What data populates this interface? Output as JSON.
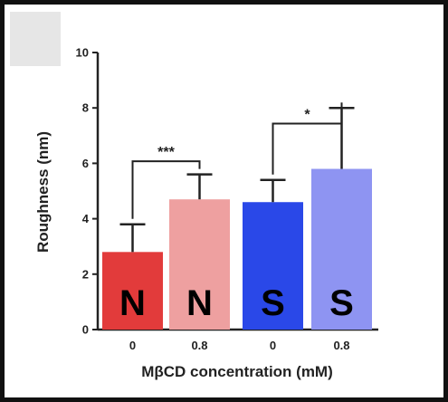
{
  "chart_data": {
    "type": "bar",
    "categories": [
      "0",
      "0.8",
      "0",
      "0.8"
    ],
    "values": [
      2.8,
      4.7,
      4.6,
      5.8
    ],
    "errors": [
      1.0,
      0.9,
      0.8,
      2.2
    ],
    "bar_labels": [
      "N",
      "N",
      "S",
      "S"
    ],
    "colors": [
      "#e23b3b",
      "#eea0a0",
      "#2a48e8",
      "#8e94f2"
    ],
    "xlabel": "MβCD concentration (mM)",
    "ylabel": "Roughness (nm)",
    "ylim": [
      0,
      10
    ],
    "yticks": [
      "0",
      "2",
      "4",
      "6",
      "8",
      "10"
    ],
    "significance": [
      {
        "bars": [
          0,
          1
        ],
        "label": "***"
      },
      {
        "bars": [
          2,
          3
        ],
        "label": "*"
      }
    ],
    "grid": false,
    "legend": "none"
  }
}
